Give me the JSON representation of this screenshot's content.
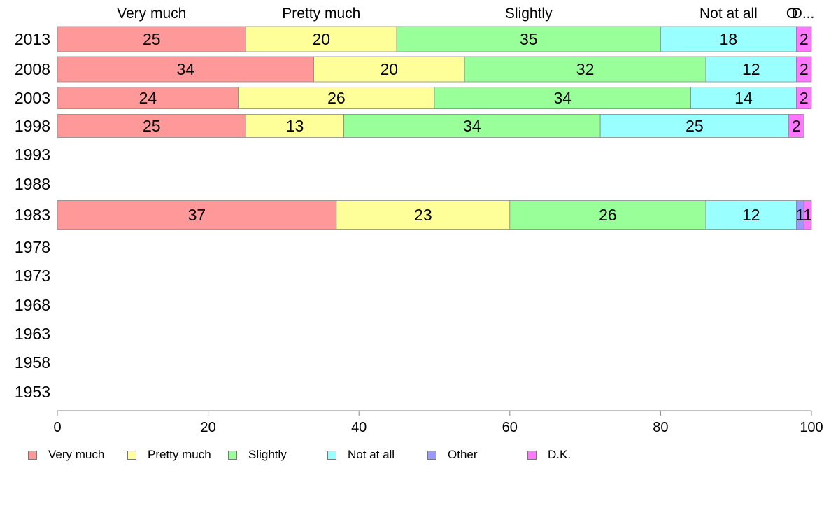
{
  "chart_data": {
    "type": "bar",
    "orientation": "horizontal",
    "stacked": true,
    "categories": [
      "2013",
      "2008",
      "2003",
      "1998",
      "1993",
      "1988",
      "1983",
      "1978",
      "1973",
      "1968",
      "1963",
      "1958",
      "1953"
    ],
    "series": [
      {
        "name": "Very much",
        "color": "#ff9999",
        "values": [
          25,
          34,
          24,
          25,
          null,
          null,
          37,
          null,
          null,
          null,
          null,
          null,
          null
        ]
      },
      {
        "name": "Pretty much",
        "color": "#ffff99",
        "values": [
          20,
          20,
          26,
          13,
          null,
          null,
          23,
          null,
          null,
          null,
          null,
          null,
          null
        ]
      },
      {
        "name": "Slightly",
        "color": "#99ff99",
        "values": [
          35,
          32,
          34,
          34,
          null,
          null,
          26,
          null,
          null,
          null,
          null,
          null,
          null
        ]
      },
      {
        "name": "Not at all",
        "color": "#99ffff",
        "values": [
          18,
          12,
          14,
          25,
          null,
          null,
          12,
          null,
          null,
          null,
          null,
          null,
          null
        ]
      },
      {
        "name": "Other",
        "color": "#9999ff",
        "values": [
          0,
          0,
          0,
          0,
          null,
          null,
          1,
          null,
          null,
          null,
          null,
          null,
          null
        ]
      },
      {
        "name": "D.K.",
        "color": "#ff77ff",
        "values": [
          2,
          2,
          2,
          2,
          null,
          null,
          1,
          null,
          null,
          null,
          null,
          null,
          null
        ]
      }
    ],
    "top_labels": [
      "Very much",
      "Pretty much",
      "Slightly",
      "Not at all",
      "O",
      "D..."
    ],
    "xlim": [
      0,
      100
    ],
    "xticks": [
      0,
      20,
      40,
      60,
      80,
      100
    ],
    "title": "",
    "xlabel": "",
    "ylabel": "",
    "grid": false,
    "legend": "bottom"
  }
}
